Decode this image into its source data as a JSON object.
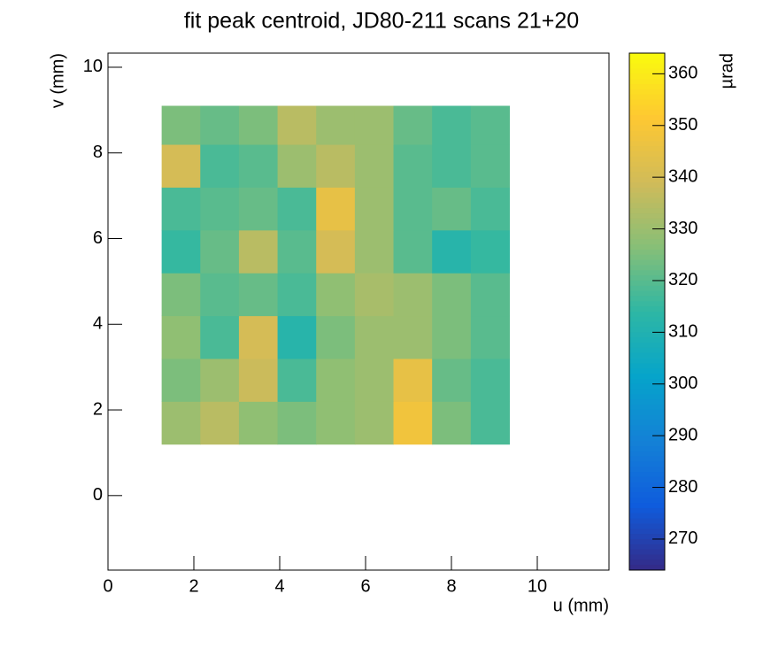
{
  "chart_data": {
    "type": "heatmap",
    "title": "fit peak centroid, JD80-211 scans 21+20",
    "x_label": "u (mm)",
    "y_label": "v (mm)",
    "z_label": "µrad",
    "xlim": [
      0,
      11.67
    ],
    "xticks": [
      0,
      2,
      4,
      6,
      8,
      10
    ],
    "ylim": [
      -1.74,
      10.33
    ],
    "yticks": [
      0,
      2,
      4,
      6,
      8,
      10
    ],
    "zlim": [
      264,
      364
    ],
    "zticks": [
      270,
      280,
      290,
      300,
      310,
      320,
      330,
      340,
      350,
      360
    ],
    "colormap": [
      "#352a87",
      "#0f5cdd",
      "#1481d6",
      "#06a4ca",
      "#2eb7a4",
      "#87bf77",
      "#d1bb59",
      "#fec832",
      "#f9fb0e"
    ],
    "xbins": [
      1.25,
      2.15,
      3.05,
      3.95,
      4.85,
      5.75,
      6.65,
      7.55,
      8.45,
      9.35
    ],
    "ybins": [
      1.2,
      2.2,
      3.2,
      4.2,
      5.2,
      6.2,
      7.2,
      8.2,
      9.1
    ],
    "z": [
      [
        330,
        335,
        328,
        325,
        328,
        330,
        348,
        325,
        318
      ],
      [
        325,
        330,
        338,
        318,
        328,
        330,
        345,
        322,
        318
      ],
      [
        328,
        318,
        340,
        312,
        325,
        330,
        330,
        325,
        320
      ],
      [
        325,
        320,
        322,
        318,
        328,
        332,
        330,
        325,
        320
      ],
      [
        315,
        322,
        335,
        320,
        340,
        330,
        320,
        312,
        315
      ],
      [
        318,
        320,
        322,
        318,
        345,
        330,
        320,
        322,
        318
      ],
      [
        340,
        318,
        320,
        330,
        335,
        330,
        320,
        318,
        320
      ],
      [
        325,
        322,
        325,
        335,
        330,
        330,
        322,
        318,
        320
      ]
    ]
  }
}
